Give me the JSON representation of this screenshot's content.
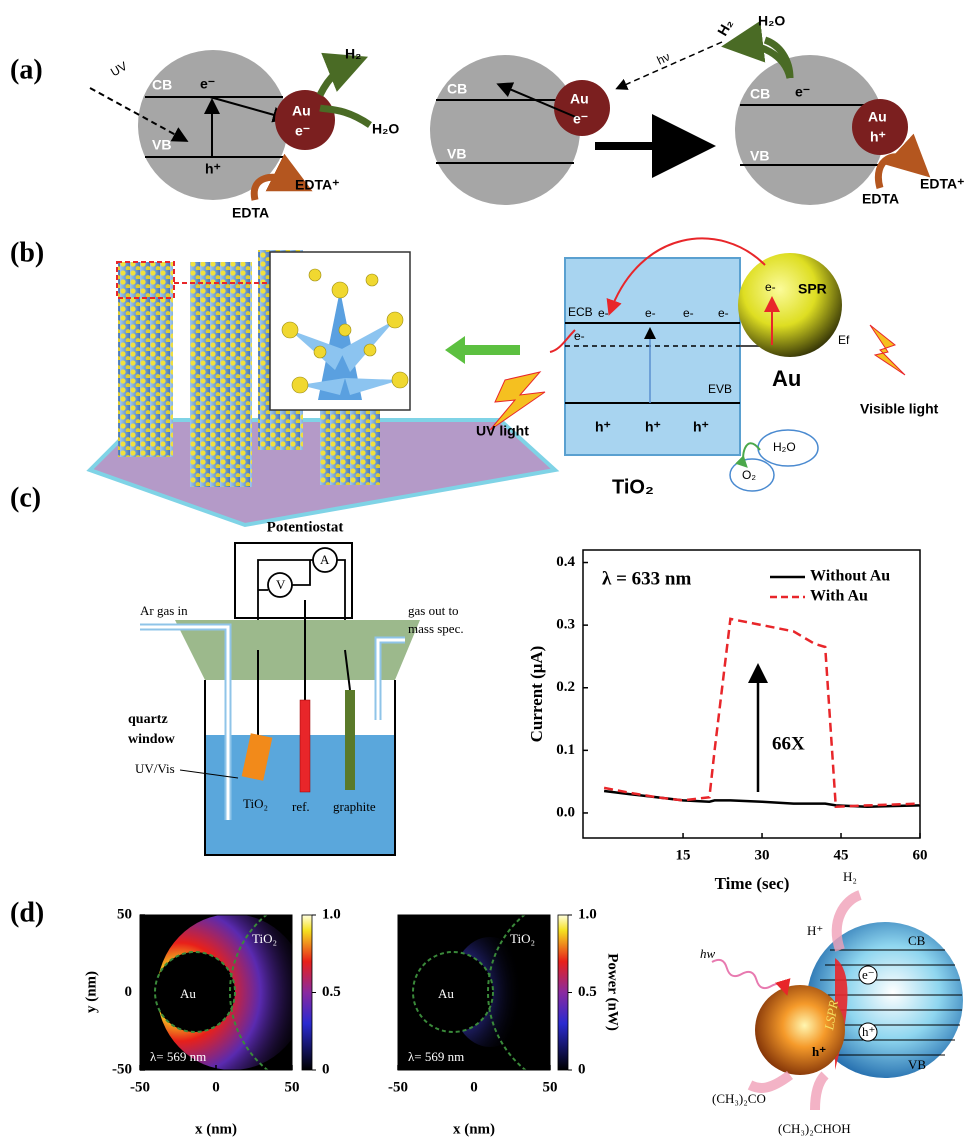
{
  "panel_labels": [
    "(a)",
    "(b)",
    "(c)",
    "(d)"
  ],
  "panel_a": {
    "left": [
      "UV",
      "CB",
      "VB",
      "e⁻",
      "h⁺",
      "Au",
      "e⁻",
      "H₂",
      "H₂O",
      "EDTA⁺",
      "EDTA"
    ],
    "middle": [
      "CB",
      "VB",
      "Au",
      "e⁻",
      "hν"
    ],
    "right": [
      "H₂",
      "H₂O",
      "CB",
      "e⁻",
      "VB",
      "Au",
      "h⁺",
      "EDTA⁺",
      "EDTA"
    ]
  },
  "panel_b": {
    "tio2": [
      "ECB",
      "e-",
      "e-",
      "e-",
      "e-",
      "e-",
      "EVB",
      "h⁺",
      "h⁺",
      "h⁺",
      "TiO₂",
      "UV light"
    ],
    "au": [
      "e-",
      "SPR",
      "Ef",
      "Au",
      "Visible light"
    ],
    "clouds": [
      "H₂O",
      "O₂"
    ]
  },
  "panel_c": {
    "setup": [
      "Potentiostat",
      "A",
      "V",
      "Ar gas in",
      "gas out to",
      "mass spec.",
      "quartz",
      "window",
      "UV/Vis",
      "TiO₂",
      "ref.",
      "graphite"
    ]
  },
  "panel_d": {
    "diagram": [
      "hw",
      "H₂",
      "H⁺",
      "CB",
      "e⁻",
      "LSPR",
      "h⁺",
      "h⁺",
      "VB",
      "(CH₃)₂CO",
      "(CH₃)₂CHOH"
    ]
  },
  "chart_data": [
    {
      "type": "line",
      "annotations": [
        "λ = 633 nm",
        "66X"
      ],
      "xlabel": "Time (sec)",
      "ylabel": "Current (μA)",
      "x": [
        0,
        5,
        10,
        15,
        20,
        21,
        24,
        30,
        36,
        40,
        42,
        44,
        50,
        60
      ],
      "series": [
        {
          "name": "Without Au",
          "color": "#000000",
          "linestyle": "solid",
          "values": [
            0.035,
            0.03,
            0.025,
            0.02,
            0.018,
            0.02,
            0.02,
            0.018,
            0.015,
            0.015,
            0.015,
            0.012,
            0.01,
            0.012
          ]
        },
        {
          "name": "With Au",
          "color": "#e8262a",
          "linestyle": "dashed",
          "values": [
            0.04,
            0.032,
            0.025,
            0.02,
            0.025,
            0.1,
            0.31,
            0.3,
            0.29,
            0.27,
            0.265,
            0.01,
            0.012,
            0.015
          ]
        }
      ],
      "xlim": [
        -4,
        60
      ],
      "ylim": [
        -0.04,
        0.42
      ],
      "xticks": [
        15,
        30,
        45,
        60
      ],
      "yticks": [
        {
          "value": 0,
          "label": "0.0"
        },
        0.1,
        0.2,
        0.3,
        0.4
      ]
    },
    {
      "type": "heatmap",
      "xlabel": "x (nm)",
      "ylabel": "y (nm)",
      "annotations": [
        "Au",
        "TiO₂",
        "λ= 569 nm"
      ],
      "xlim": [
        -50,
        50
      ],
      "ylim": [
        -50,
        50
      ],
      "xticks": [
        -50,
        0,
        50
      ],
      "yticks": [
        -50,
        0,
        50
      ],
      "clim": [
        0,
        1
      ],
      "cticks": [
        0,
        0.5,
        {
          "value": 1,
          "label": "1.0"
        }
      ]
    },
    {
      "type": "heatmap",
      "xlabel": "x (nm)",
      "clabel": "Power (nW)",
      "annotations": [
        "Au",
        "TiO₂",
        "λ= 569 nm"
      ],
      "xlim": [
        -50,
        50
      ],
      "ylim": [
        -50,
        50
      ],
      "xticks": [
        -50,
        0,
        50
      ],
      "clim": [
        0,
        1
      ],
      "cticks": [
        0,
        0.5,
        {
          "value": 1,
          "label": "1.0"
        }
      ]
    }
  ]
}
